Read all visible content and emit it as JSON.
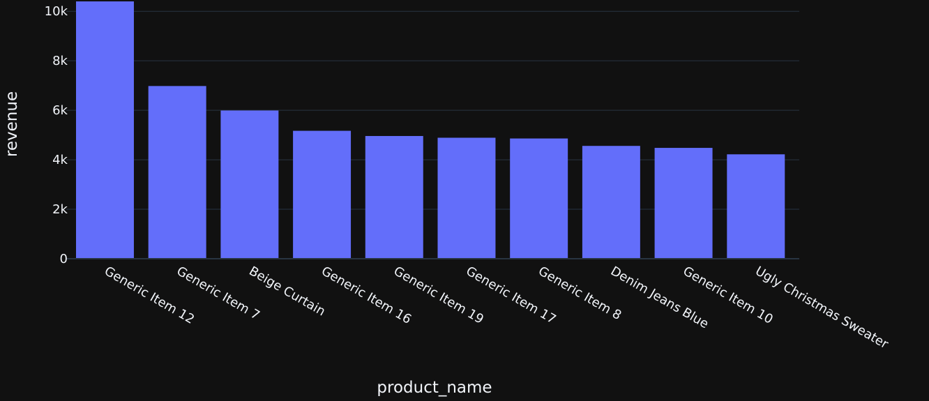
{
  "chart_data": {
    "type": "bar",
    "xlabel": "product_name",
    "ylabel": "revenue",
    "categories": [
      "Generic Item 12",
      "Generic Item 7",
      "Beige Curtain",
      "Generic Item 16",
      "Generic Item 19",
      "Generic Item 17",
      "Generic Item 8",
      "Denim Jeans Blue",
      "Generic Item 10",
      "Ugly Christmas Sweater"
    ],
    "values": [
      10400,
      6980,
      5990,
      5170,
      4960,
      4890,
      4860,
      4560,
      4480,
      4220
    ],
    "ylim": [
      0,
      10400
    ],
    "yticks": [
      0,
      2000,
      4000,
      6000,
      8000,
      10000
    ],
    "ytick_labels": [
      "0",
      "2k",
      "4k",
      "6k",
      "8k",
      "10k"
    ],
    "grid": true,
    "legend": "none",
    "colors": {
      "background": "#111111",
      "bar": "#636efa",
      "grid": "#283442",
      "text": "#f2f5fa"
    }
  }
}
